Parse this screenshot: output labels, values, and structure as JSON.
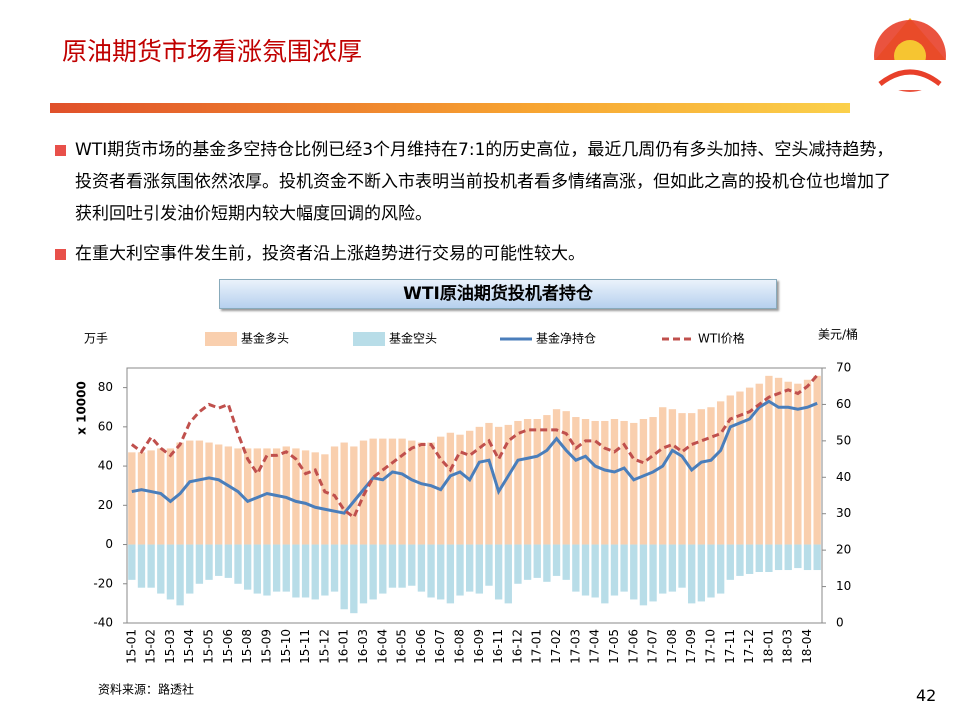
{
  "slide": {
    "title": "原油期货市场看涨氛围浓厚",
    "bullets": [
      "WTI期货市场的基金多空持仓比例已经3个月维持在7:1的历史高位，最近几周仍有多头加持、空头减持趋势，投资者看涨氛围依然浓厚。投机资金不断入市表明当前投机者看多情绪高涨，但如此之高的投机仓位也增加了获利回吐引发油价短期内较大幅度回调的风险。",
      "在重大利空事件发生前，投资者沿上涨趋势进行交易的可能性较大。"
    ],
    "chart_heading": "WTI原油期货投机者持仓",
    "page_number": "42"
  },
  "chart_data": {
    "type": "combo",
    "ylabel_unit": "万手",
    "ylabel": "x 10000",
    "y2label": "美元/桶",
    "source": "资料来源：路透社",
    "categories": [
      "15-01",
      null,
      "15-02",
      null,
      "15-03",
      null,
      "15-04",
      null,
      "15-05",
      null,
      "15-06",
      null,
      "15-08",
      null,
      "15-09",
      null,
      "15-10",
      null,
      "15-11",
      null,
      "15-12",
      null,
      "16-01",
      null,
      "16-03",
      null,
      "16-04",
      null,
      "16-05",
      null,
      "16-06",
      null,
      "16-07",
      null,
      "16-08",
      null,
      "16-09",
      null,
      "16-11",
      null,
      "16-12",
      null,
      "17-01",
      null,
      "17-02",
      null,
      "17-03",
      null,
      "17-04",
      null,
      "17-05",
      null,
      "17-06",
      null,
      "17-07",
      null,
      "17-08",
      null,
      "17-09",
      null,
      "17-10",
      null,
      "17-11",
      null,
      "17-12",
      null,
      "18-01",
      null,
      "18-03",
      null,
      "18-04",
      null
    ],
    "series": [
      {
        "name": "基金多头",
        "color": "#f9cfae",
        "kind": "bar",
        "values": [
          47,
          47,
          48,
          49,
          49,
          52,
          53,
          53,
          52,
          51,
          50,
          49,
          49,
          49,
          49,
          49,
          50,
          49,
          48,
          47,
          46,
          50,
          52,
          50,
          53,
          54,
          54,
          54,
          54,
          53,
          52,
          52,
          55,
          57,
          56,
          58,
          60,
          62,
          60,
          61,
          63,
          64,
          64,
          66,
          69,
          68,
          65,
          64,
          63,
          63,
          64,
          63,
          62,
          64,
          65,
          70,
          69,
          67,
          67,
          69,
          70,
          73,
          76,
          78,
          80,
          82,
          86,
          85,
          83,
          82,
          84,
          86
        ]
      },
      {
        "name": "基金空头",
        "color": "#b8dde8",
        "kind": "bar",
        "values": [
          -18,
          -22,
          -22,
          -25,
          -28,
          -31,
          -25,
          -20,
          -18,
          -16,
          -17,
          -20,
          -23,
          -25,
          -26,
          -24,
          -24,
          -27,
          -27,
          -28,
          -26,
          -24,
          -33,
          -35,
          -30,
          -28,
          -25,
          -22,
          -22,
          -21,
          -24,
          -27,
          -28,
          -30,
          -26,
          -24,
          -25,
          -21,
          -28,
          -30,
          -20,
          -18,
          -17,
          -19,
          -16,
          -18,
          -24,
          -26,
          -27,
          -30,
          -26,
          -24,
          -28,
          -31,
          -29,
          -25,
          -24,
          -22,
          -30,
          -29,
          -27,
          -25,
          -18,
          -16,
          -15,
          -14,
          -14,
          -13,
          -13,
          -12,
          -13,
          -13
        ]
      },
      {
        "name": "基金净持仓",
        "color": "#4a7ebb",
        "kind": "line",
        "values": [
          27,
          28,
          27,
          26,
          22,
          26,
          32,
          33,
          34,
          33,
          30,
          27,
          22,
          24,
          26,
          25,
          24,
          22,
          21,
          19,
          18,
          17,
          16,
          22,
          28,
          34,
          33,
          37,
          36,
          33,
          31,
          30,
          28,
          35,
          37,
          33,
          42,
          43,
          27,
          35,
          43,
          44,
          45,
          48,
          54,
          48,
          43,
          45,
          40,
          38,
          37,
          39,
          33,
          35,
          37,
          40,
          48,
          45,
          38,
          42,
          43,
          48,
          60,
          62,
          64,
          70,
          73,
          70,
          70,
          69,
          70,
          72
        ]
      },
      {
        "name": "WTI价格",
        "color": "#c0504d",
        "kind": "line",
        "dashed": true,
        "axis": "y2",
        "values": [
          49,
          47,
          51,
          48,
          46,
          49,
          55,
          58,
          60,
          59,
          60,
          52,
          45,
          41,
          46,
          46,
          47,
          45,
          41,
          42,
          36,
          35,
          31,
          29,
          35,
          40,
          42,
          44,
          46,
          48,
          49,
          49,
          45,
          42,
          47,
          46,
          48,
          50,
          45,
          50,
          52,
          53,
          53,
          53,
          53,
          52,
          48,
          50,
          50,
          48,
          47,
          49,
          45,
          44,
          46,
          48,
          49,
          47,
          49,
          50,
          51,
          52,
          56,
          57,
          58,
          60,
          62,
          63,
          64,
          63,
          65,
          68
        ]
      }
    ],
    "ylim": [
      -40,
      90
    ],
    "yticks": [
      -40,
      -20,
      0,
      20,
      40,
      60,
      80
    ],
    "y2lim": [
      0,
      70
    ],
    "y2ticks": [
      0,
      10,
      20,
      30,
      40,
      50,
      60,
      70
    ]
  }
}
